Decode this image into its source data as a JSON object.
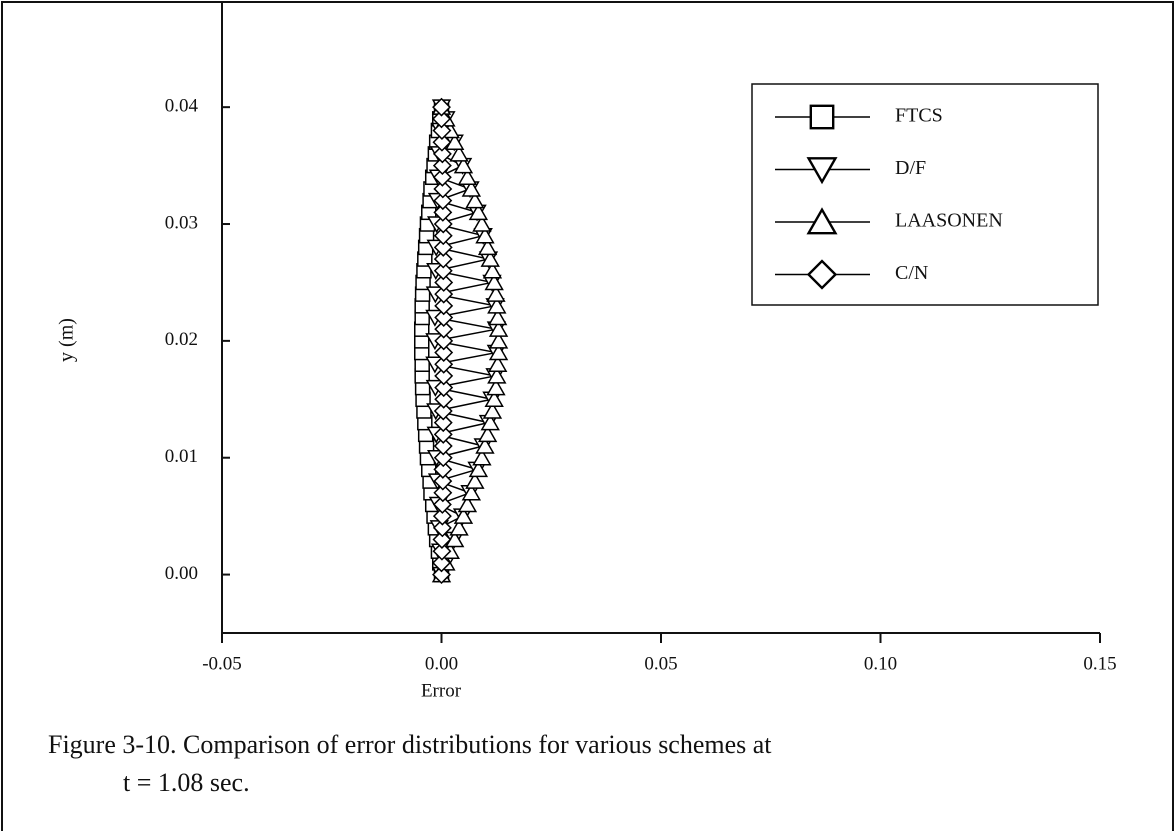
{
  "chart_data": {
    "type": "line",
    "xlabel": "Error",
    "ylabel": "y (m)",
    "caption": [
      "Figure 3-10. Comparison of error distributions for various schemes at",
      "t = 1.08 sec."
    ],
    "xlim": [
      -0.05,
      0.15
    ],
    "xticks": [
      -0.05,
      {
        "value": 0,
        "label": "0.00"
      },
      0.05,
      {
        "value": 0.1,
        "label": "0.10"
      },
      0.15
    ],
    "ylim": [
      -0.005,
      0.049
    ],
    "yticks": [
      {
        "value": 0,
        "label": "0.00"
      },
      0.01,
      0.02,
      0.03,
      0.04
    ],
    "legend": "upper right",
    "y": [
      0,
      0.001,
      0.002,
      0.003,
      0.004,
      0.005,
      0.006,
      0.007,
      0.008,
      0.009,
      0.01,
      0.011,
      0.012,
      0.013,
      0.014,
      0.015,
      0.016,
      0.017,
      0.018,
      0.019,
      0.02,
      0.021,
      0.022,
      0.023,
      0.024,
      0.025,
      0.026,
      0.027,
      0.028,
      0.029,
      0.03,
      0.031,
      0.032,
      0.033,
      0.034,
      0.035,
      0.036,
      0.037,
      0.038,
      0.039,
      0.04
    ],
    "series": [
      {
        "name": "FTCS",
        "color": "#000000",
        "marker": "square",
        "values": [
          0,
          -0.0004,
          -0.0007,
          -0.0011,
          -0.0014,
          -0.0017,
          -0.002,
          -0.0024,
          -0.0026,
          -0.0029,
          -0.0032,
          -0.0034,
          -0.0036,
          -0.0038,
          -0.004,
          -0.0042,
          -0.0043,
          -0.0044,
          -0.0044,
          -0.0045,
          -0.0045,
          -0.0045,
          -0.0044,
          -0.0044,
          -0.0043,
          -0.0042,
          -0.004,
          -0.0038,
          -0.0036,
          -0.0034,
          -0.0032,
          -0.0029,
          -0.0026,
          -0.0024,
          -0.002,
          -0.0017,
          -0.0014,
          -0.0011,
          -0.0007,
          -0.0004,
          0
        ]
      },
      {
        "name": "D/F",
        "color": "#000000",
        "marker": "triangle-down",
        "values": [
          0,
          0.001,
          -0.0002,
          0.0029,
          -0.0005,
          0.0048,
          -0.0007,
          0.0065,
          -0.0009,
          0.0081,
          -0.0011,
          0.0095,
          -0.0012,
          0.0107,
          -0.0013,
          0.0115,
          -0.0014,
          0.0122,
          -0.0015,
          0.0125,
          -0.0015,
          0.0125,
          -0.0015,
          0.0122,
          -0.0014,
          0.0115,
          -0.0013,
          0.0107,
          -0.0012,
          0.0095,
          -0.0011,
          0.0081,
          -0.0009,
          0.0065,
          -0.0007,
          0.0048,
          -0.0005,
          0.0029,
          -0.0002,
          0.001,
          0
        ]
      },
      {
        "name": "LAASONEN",
        "color": "#000000",
        "marker": "triangle-up",
        "values": [
          0,
          0.001,
          0.002,
          0.003,
          0.004,
          0.005,
          0.0059,
          0.0068,
          0.0076,
          0.0084,
          0.0092,
          0.0099,
          0.0105,
          0.0111,
          0.0116,
          0.012,
          0.0124,
          0.0126,
          0.0128,
          0.013,
          0.013,
          0.013,
          0.0128,
          0.0126,
          0.0124,
          0.012,
          0.0116,
          0.0111,
          0.0105,
          0.0099,
          0.0092,
          0.0084,
          0.0076,
          0.0068,
          0.0059,
          0.005,
          0.004,
          0.003,
          0.002,
          0.001,
          0
        ]
      },
      {
        "name": "C/N",
        "color": "#000000",
        "marker": "diamond",
        "values": [
          0,
          0,
          0.0001,
          0.0001,
          0.0002,
          0.0002,
          0.0002,
          0.0003,
          0.0003,
          0.0003,
          0.0004,
          0.0004,
          0.0004,
          0.0004,
          0.0004,
          0.0005,
          0.0005,
          0.0005,
          0.0005,
          0.0005,
          0.0005,
          0.0005,
          0.0005,
          0.0005,
          0.0005,
          0.0005,
          0.0004,
          0.0004,
          0.0004,
          0.0004,
          0.0004,
          0.0003,
          0.0003,
          0.0003,
          0.0002,
          0.0002,
          0.0002,
          0.0001,
          0.0001,
          0,
          0
        ]
      }
    ]
  }
}
